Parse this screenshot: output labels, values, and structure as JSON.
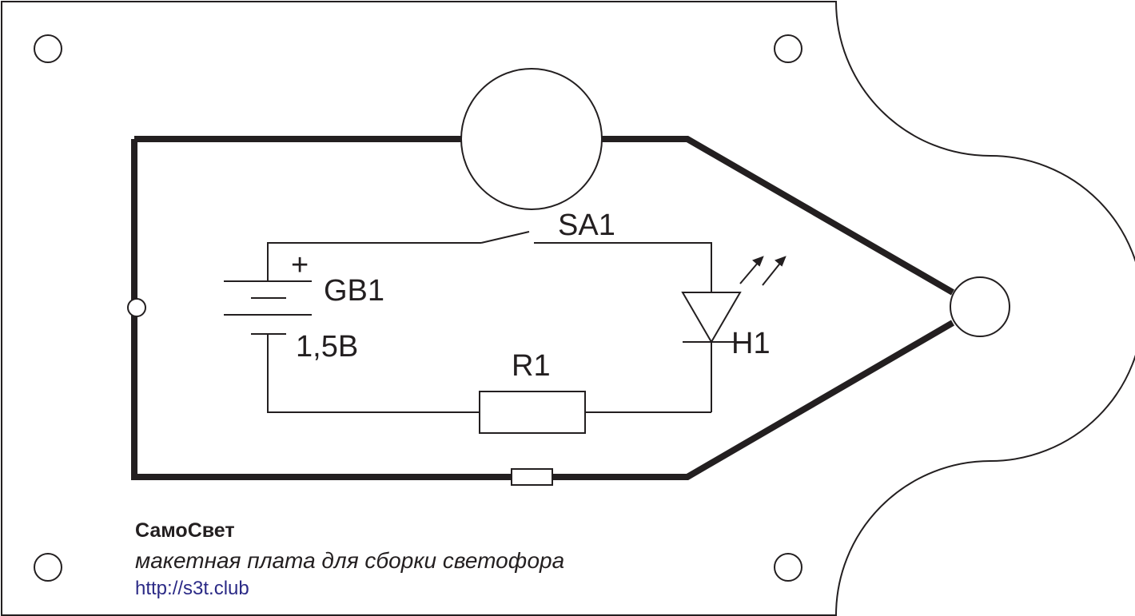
{
  "board": {
    "outline_color": "#231f20",
    "url_color": "#2b2a86",
    "background": "#ffffff"
  },
  "schematic": {
    "switch_label": "SA1",
    "battery_label": "GB1",
    "battery_voltage": "1,5В",
    "battery_polarity": "+",
    "led_label": "H1",
    "resistor_label": "R1"
  },
  "footer": {
    "title": "СамоСвет",
    "subtitle": "макетная плата для сборки светофора",
    "url": "http://s3t.club"
  }
}
